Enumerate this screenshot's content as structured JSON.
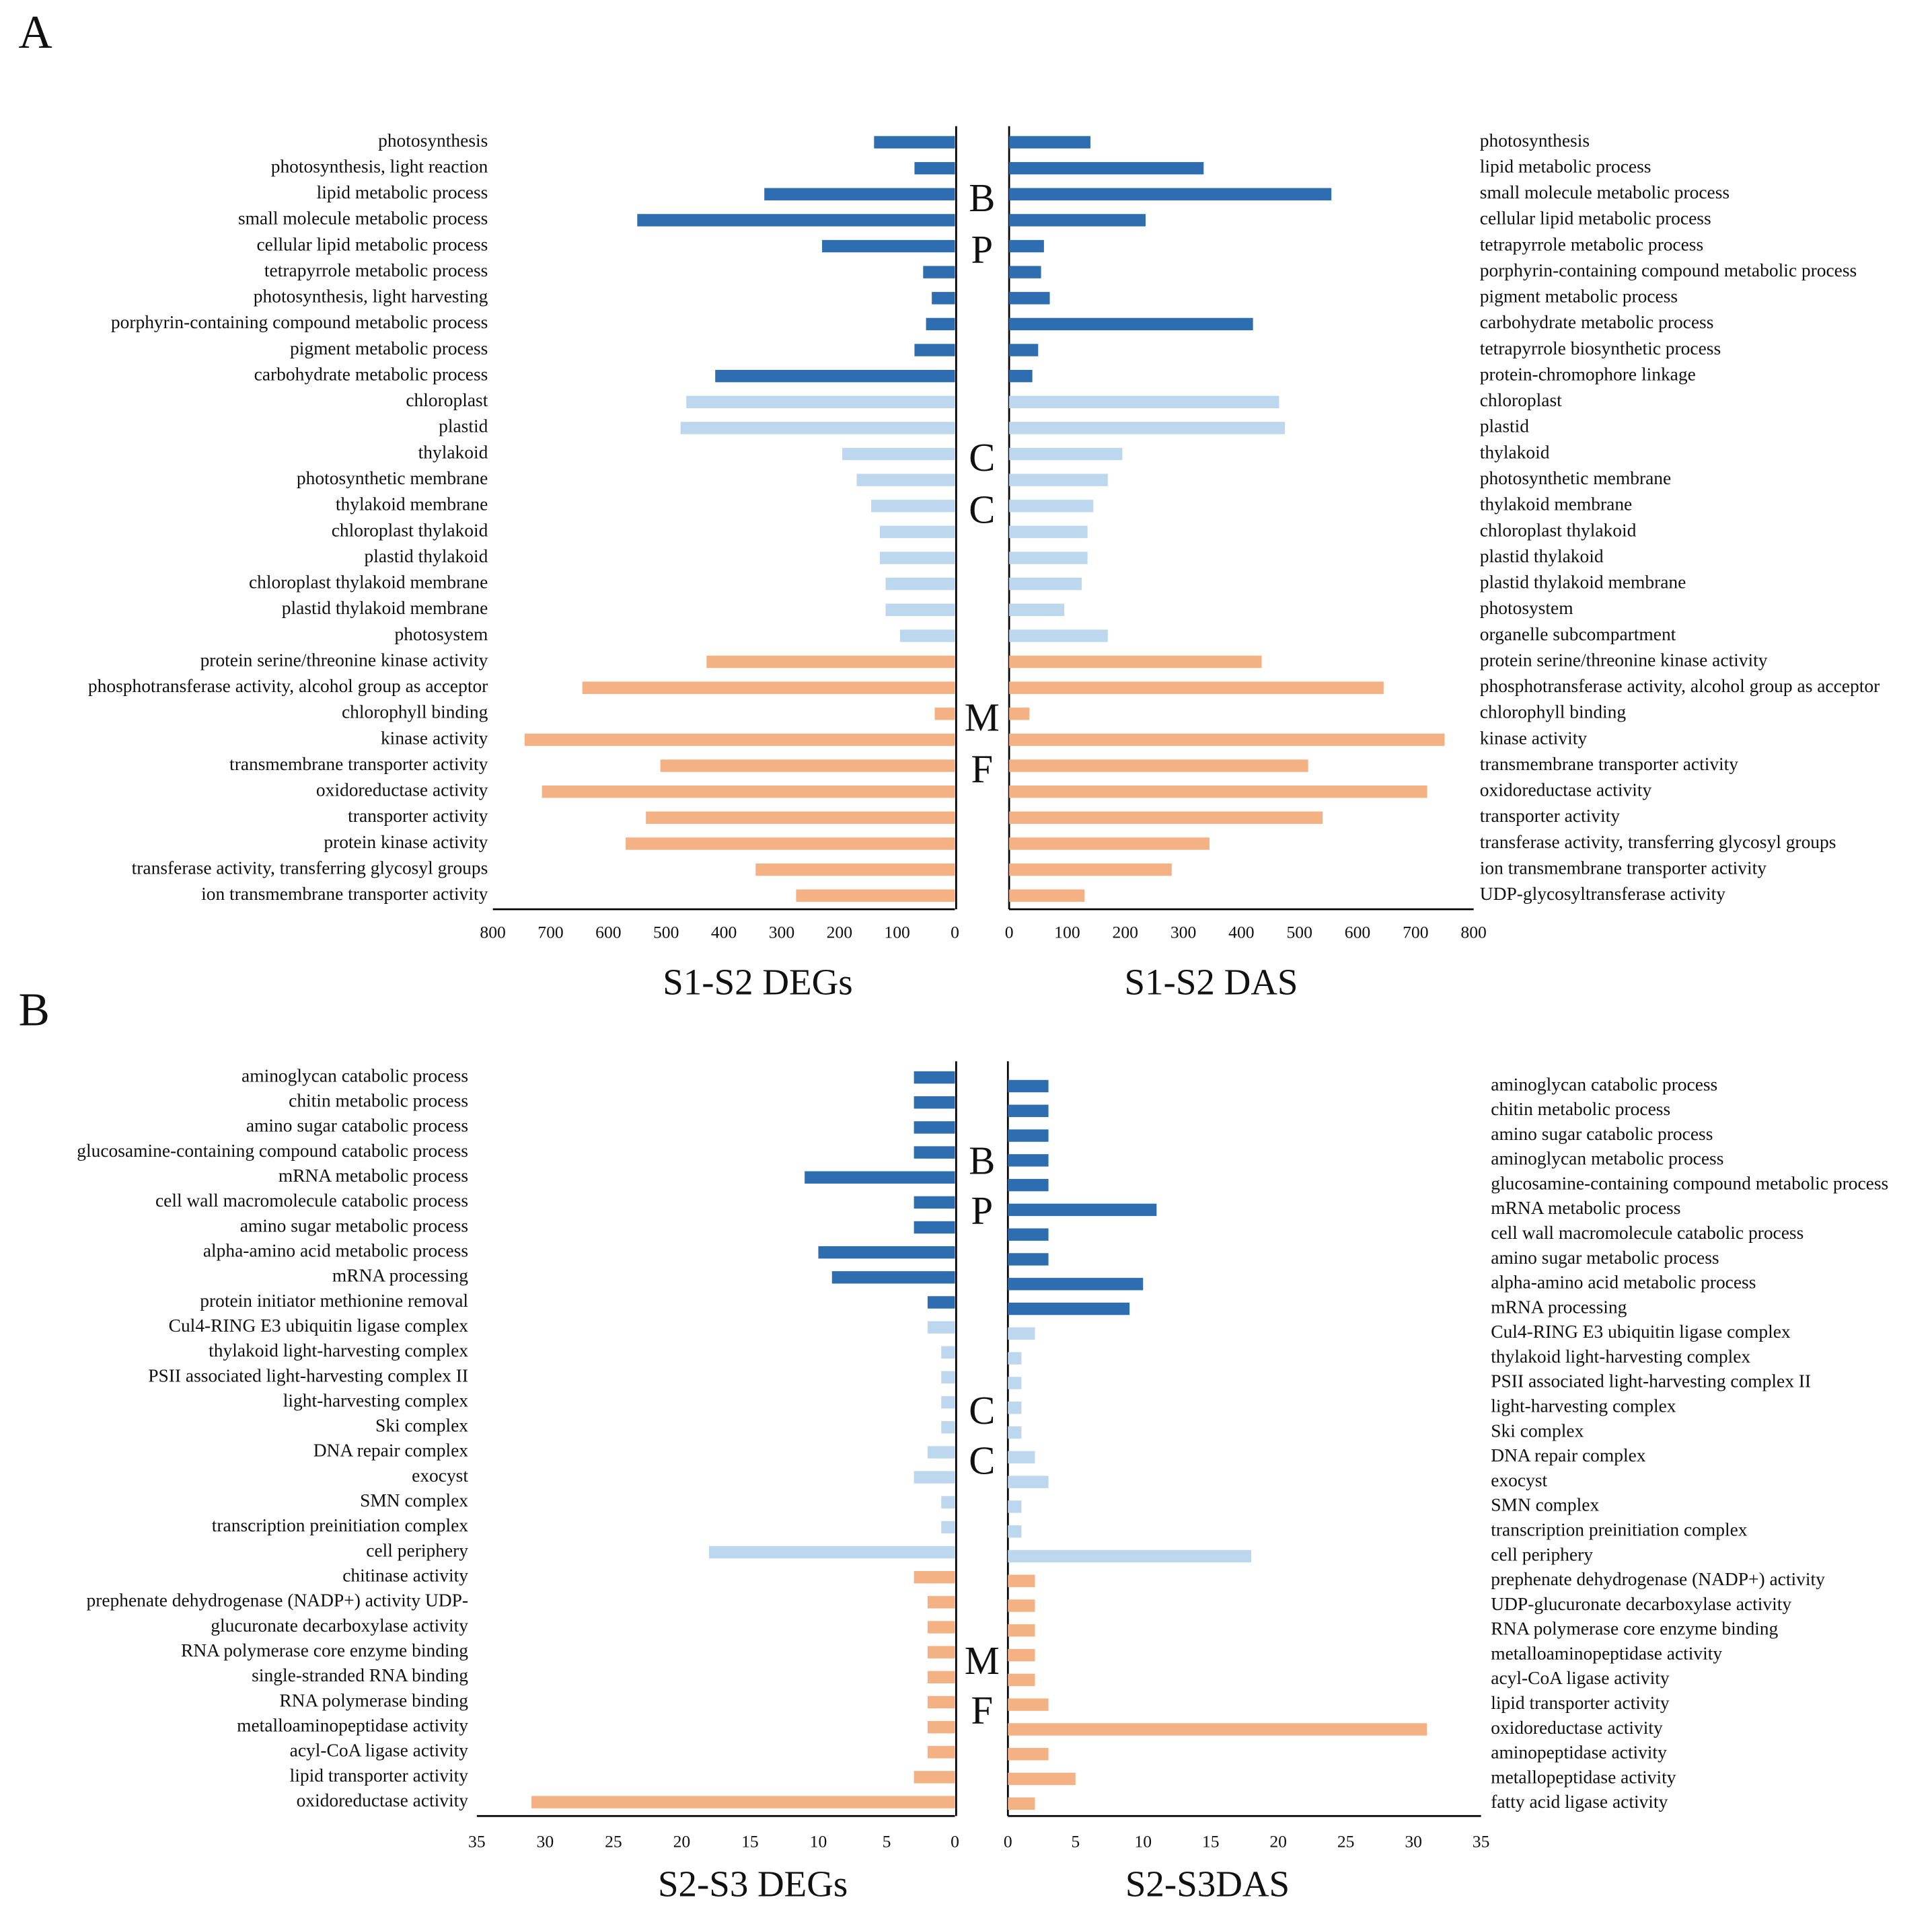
{
  "panels": [
    {
      "label": "A",
      "group_labels": [
        [
          "B",
          "P"
        ],
        [
          "C",
          "C"
        ],
        [
          "M",
          "F"
        ]
      ]
    },
    {
      "label": "B",
      "group_labels": [
        [
          "B",
          "P"
        ],
        [
          "C",
          "C"
        ],
        [
          "M",
          "F"
        ]
      ]
    }
  ],
  "chart_data": [
    {
      "type": "bar",
      "orientation": "horizontal",
      "title": "S1-S2  DEGs",
      "categories": [
        "photosynthesis",
        "photosynthesis, light reaction",
        "lipid metabolic process",
        "small molecule metabolic process",
        "cellular lipid metabolic process",
        "tetrapyrrole metabolic process",
        "photosynthesis, light harvesting",
        "porphyrin-containing compound metabolic process",
        "pigment metabolic process",
        "carbohydrate metabolic process",
        "chloroplast",
        "plastid",
        "thylakoid",
        "photosynthetic membrane",
        "thylakoid membrane",
        "chloroplast thylakoid",
        "plastid thylakoid",
        "chloroplast thylakoid membrane",
        "plastid thylakoid membrane",
        "photosystem",
        "protein serine/threonine kinase activity",
        "phosphotransferase activity, alcohol group as acceptor",
        "chlorophyll binding",
        "kinase activity",
        "transmembrane transporter activity",
        "oxidoreductase activity",
        "transporter activity",
        "protein kinase activity",
        "transferase activity, transferring glycosyl groups",
        "ion transmembrane transporter activity"
      ],
      "values": [
        140,
        70,
        330,
        550,
        230,
        55,
        40,
        50,
        70,
        415,
        465,
        475,
        195,
        170,
        145,
        130,
        130,
        120,
        120,
        95,
        430,
        645,
        35,
        745,
        510,
        715,
        535,
        570,
        345,
        275
      ],
      "colors": [
        "#2e6db0",
        "#2e6db0",
        "#2e6db0",
        "#2e6db0",
        "#2e6db0",
        "#2e6db0",
        "#2e6db0",
        "#2e6db0",
        "#2e6db0",
        "#2e6db0",
        "#bdd7ee",
        "#bdd7ee",
        "#bdd7ee",
        "#bdd7ee",
        "#bdd7ee",
        "#bdd7ee",
        "#bdd7ee",
        "#bdd7ee",
        "#bdd7ee",
        "#bdd7ee",
        "#f4b183",
        "#f4b183",
        "#f4b183",
        "#f4b183",
        "#f4b183",
        "#f4b183",
        "#f4b183",
        "#f4b183",
        "#f4b183",
        "#f4b183"
      ],
      "xlim": [
        800,
        0
      ],
      "xticks": [
        800,
        700,
        600,
        500,
        400,
        300,
        200,
        100,
        0
      ]
    },
    {
      "type": "bar",
      "orientation": "horizontal",
      "title": "S1-S2 DAS",
      "categories": [
        "photosynthesis",
        "lipid metabolic process",
        "small molecule metabolic process",
        "cellular lipid metabolic process",
        "tetrapyrrole metabolic process",
        "porphyrin-containing compound metabolic process",
        "pigment metabolic process",
        "carbohydrate metabolic process",
        "tetrapyrrole biosynthetic process",
        "protein-chromophore linkage",
        "chloroplast",
        "plastid",
        "thylakoid",
        "photosynthetic membrane",
        "thylakoid membrane",
        "chloroplast thylakoid",
        "plastid thylakoid",
        "plastid thylakoid membrane",
        "photosystem",
        "organelle subcompartment",
        "protein serine/threonine kinase activity",
        "phosphotransferase activity, alcohol group as acceptor",
        "chlorophyll binding",
        "kinase activity",
        "transmembrane transporter activity",
        "oxidoreductase activity",
        "transporter activity",
        "transferase activity, transferring glycosyl groups",
        "ion transmembrane transporter activity",
        "UDP-glycosyltransferase activity"
      ],
      "values": [
        140,
        335,
        555,
        235,
        60,
        55,
        70,
        420,
        50,
        40,
        465,
        475,
        195,
        170,
        145,
        135,
        135,
        125,
        95,
        170,
        435,
        645,
        35,
        750,
        515,
        720,
        540,
        345,
        280,
        130
      ],
      "colors": [
        "#2e6db0",
        "#2e6db0",
        "#2e6db0",
        "#2e6db0",
        "#2e6db0",
        "#2e6db0",
        "#2e6db0",
        "#2e6db0",
        "#2e6db0",
        "#2e6db0",
        "#bdd7ee",
        "#bdd7ee",
        "#bdd7ee",
        "#bdd7ee",
        "#bdd7ee",
        "#bdd7ee",
        "#bdd7ee",
        "#bdd7ee",
        "#bdd7ee",
        "#bdd7ee",
        "#f4b183",
        "#f4b183",
        "#f4b183",
        "#f4b183",
        "#f4b183",
        "#f4b183",
        "#f4b183",
        "#f4b183",
        "#f4b183",
        "#f4b183"
      ],
      "xlim": [
        0,
        800
      ],
      "xticks": [
        0,
        100,
        200,
        300,
        400,
        500,
        600,
        700,
        800
      ]
    },
    {
      "type": "bar",
      "orientation": "horizontal",
      "title": "S2-S3 DEGs",
      "categories": [
        "aminoglycan catabolic process",
        "chitin metabolic process",
        "amino sugar catabolic process",
        "glucosamine-containing compound catabolic process",
        "mRNA metabolic process",
        "cell wall macromolecule catabolic process",
        "amino sugar metabolic process",
        "alpha-amino acid metabolic process",
        "mRNA processing",
        "protein initiator methionine removal",
        "Cul4-RING E3 ubiquitin ligase complex",
        "thylakoid light-harvesting complex",
        "PSII associated light-harvesting complex II",
        "light-harvesting complex",
        "Ski complex",
        "DNA repair complex",
        "exocyst",
        "SMN complex",
        "transcription preinitiation complex",
        "cell periphery",
        "chitinase activity",
        "prephenate dehydrogenase (NADP+) activity UDP-",
        "glucuronate decarboxylase activity",
        "RNA polymerase core enzyme binding",
        "single-stranded RNA binding",
        "RNA polymerase binding",
        "metalloaminopeptidase activity",
        "acyl-CoA ligase activity",
        "lipid transporter activity",
        "oxidoreductase activity"
      ],
      "values": [
        3,
        3,
        3,
        3,
        11,
        3,
        3,
        10,
        9,
        2,
        2,
        1,
        1,
        1,
        1,
        2,
        3,
        1,
        1,
        18,
        3,
        2,
        2,
        2,
        2,
        2,
        2,
        2,
        3,
        31
      ],
      "colors": [
        "#2e6db0",
        "#2e6db0",
        "#2e6db0",
        "#2e6db0",
        "#2e6db0",
        "#2e6db0",
        "#2e6db0",
        "#2e6db0",
        "#2e6db0",
        "#2e6db0",
        "#bdd7ee",
        "#bdd7ee",
        "#bdd7ee",
        "#bdd7ee",
        "#bdd7ee",
        "#bdd7ee",
        "#bdd7ee",
        "#bdd7ee",
        "#bdd7ee",
        "#bdd7ee",
        "#f4b183",
        "#f4b183",
        "#f4b183",
        "#f4b183",
        "#f4b183",
        "#f4b183",
        "#f4b183",
        "#f4b183",
        "#f4b183",
        "#f4b183"
      ],
      "xlim": [
        35,
        0
      ],
      "xticks": [
        35,
        30,
        25,
        20,
        15,
        10,
        5,
        0
      ]
    },
    {
      "type": "bar",
      "orientation": "horizontal",
      "title": "S2-S3DAS",
      "categories": [
        "aminoglycan catabolic process",
        "chitin metabolic process",
        "amino sugar catabolic process",
        "aminoglycan metabolic process",
        "glucosamine-containing compound metabolic process",
        "mRNA metabolic process",
        "cell wall macromolecule catabolic process",
        "amino sugar metabolic process",
        "alpha-amino acid metabolic process",
        "mRNA processing",
        "Cul4-RING E3 ubiquitin ligase complex",
        "thylakoid light-harvesting complex",
        "PSII associated light-harvesting complex II",
        "light-harvesting complex",
        "Ski complex",
        "DNA repair complex",
        "exocyst",
        "SMN complex",
        "transcription preinitiation complex",
        "cell periphery",
        "prephenate dehydrogenase (NADP+) activity",
        "UDP-glucuronate decarboxylase activity",
        "RNA polymerase core enzyme binding",
        "metalloaminopeptidase activity",
        "acyl-CoA ligase activity",
        "lipid transporter activity",
        "oxidoreductase activity",
        "aminopeptidase activity",
        "metallopeptidase activity",
        "fatty acid ligase activity"
      ],
      "values": [
        3,
        3,
        3,
        3,
        3,
        11,
        3,
        3,
        10,
        9,
        2,
        1,
        1,
        1,
        1,
        2,
        3,
        1,
        1,
        18,
        2,
        2,
        2,
        2,
        2,
        3,
        31,
        3,
        5,
        2
      ],
      "colors": [
        "#2e6db0",
        "#2e6db0",
        "#2e6db0",
        "#2e6db0",
        "#2e6db0",
        "#2e6db0",
        "#2e6db0",
        "#2e6db0",
        "#2e6db0",
        "#2e6db0",
        "#bdd7ee",
        "#bdd7ee",
        "#bdd7ee",
        "#bdd7ee",
        "#bdd7ee",
        "#bdd7ee",
        "#bdd7ee",
        "#bdd7ee",
        "#bdd7ee",
        "#bdd7ee",
        "#f4b183",
        "#f4b183",
        "#f4b183",
        "#f4b183",
        "#f4b183",
        "#f4b183",
        "#f4b183",
        "#f4b183",
        "#f4b183",
        "#f4b183"
      ],
      "xlim": [
        0,
        35
      ],
      "xticks": [
        0,
        5,
        10,
        15,
        20,
        25,
        30,
        35
      ]
    }
  ]
}
